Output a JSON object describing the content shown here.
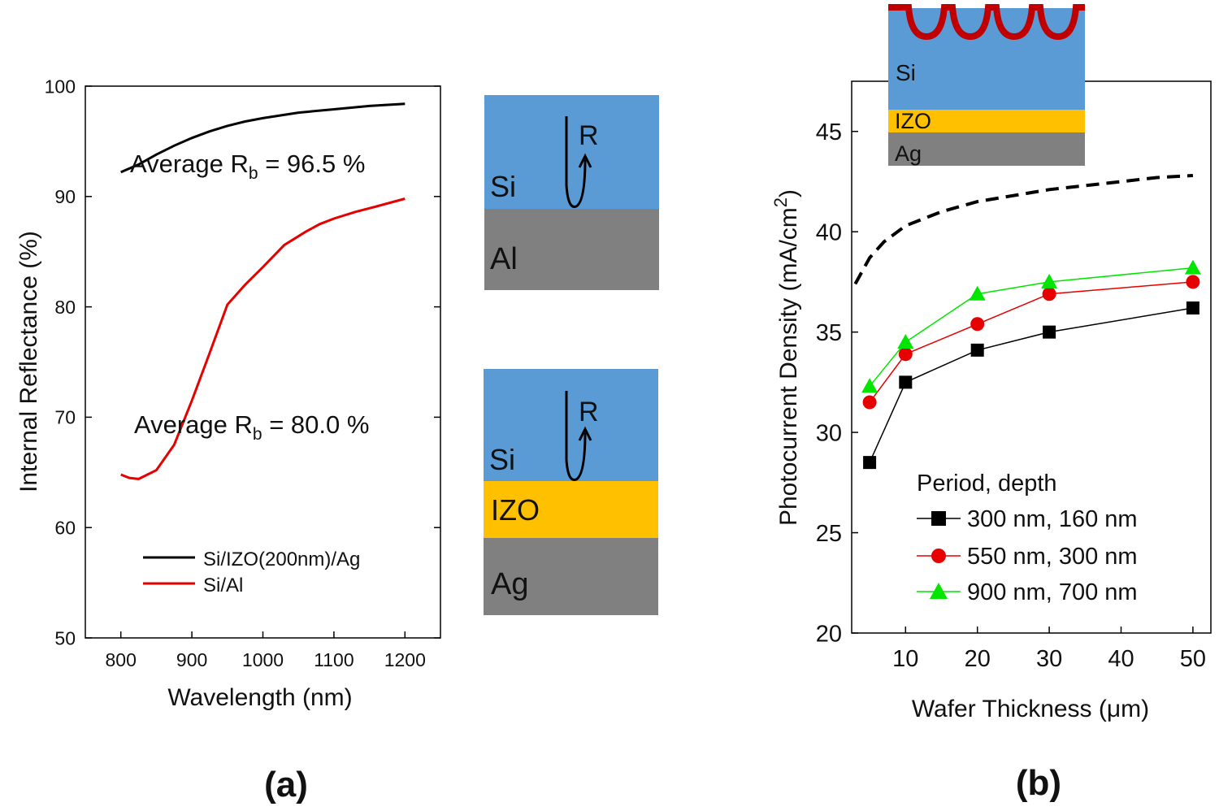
{
  "colors": {
    "black": "#000000",
    "red": "#e60000",
    "green": "#00e600",
    "si": "#5b9bd5",
    "izo": "#ffc000",
    "metal": "#808080",
    "texture": "#c00000"
  },
  "chart_data": [
    {
      "id": "a",
      "type": "line",
      "panel_label": "(a)",
      "xlabel": "Wavelength (nm)",
      "ylabel": "Internal Reflectance (%)",
      "xlim": [
        750,
        1250
      ],
      "ylim": [
        50,
        100
      ],
      "xticks": [
        800,
        900,
        1000,
        1100,
        1200
      ],
      "yticks": [
        50,
        60,
        70,
        80,
        90,
        100
      ],
      "legend_position": "bottom-left",
      "series": [
        {
          "name": "Si/IZO(200nm)/Ag",
          "color": "#000000",
          "x": [
            800,
            825,
            850,
            875,
            900,
            925,
            950,
            975,
            1000,
            1050,
            1100,
            1150,
            1200
          ],
          "y": [
            92.2,
            92.9,
            93.8,
            94.6,
            95.3,
            95.9,
            96.4,
            96.8,
            97.1,
            97.6,
            97.9,
            98.2,
            98.4
          ]
        },
        {
          "name": "Si/Al",
          "color": "#e60000",
          "x": [
            800,
            812,
            825,
            850,
            875,
            900,
            925,
            950,
            975,
            1000,
            1030,
            1060,
            1080,
            1100,
            1130,
            1160,
            1200
          ],
          "y": [
            64.8,
            64.5,
            64.4,
            65.2,
            67.5,
            71.5,
            75.8,
            80.2,
            82.0,
            83.6,
            85.6,
            86.8,
            87.5,
            88.0,
            88.6,
            89.1,
            89.8
          ]
        }
      ],
      "annotations": [
        {
          "prefix": "Average R",
          "sub": "b",
          "suffix": " = 96.5 %",
          "x": 812,
          "y": 93.2
        },
        {
          "prefix": "Average R",
          "sub": "b",
          "suffix": " = 80.0 %",
          "x": 815,
          "y": 69.2
        }
      ],
      "stacks": [
        {
          "layers": [
            {
              "label": "Si",
              "color": "#5b9bd5"
            },
            {
              "label": "Al",
              "color": "#808080"
            }
          ],
          "arrow_label": "R"
        },
        {
          "layers": [
            {
              "label": "Si",
              "color": "#5b9bd5"
            },
            {
              "label": "IZO",
              "color": "#ffc000"
            },
            {
              "label": "Ag",
              "color": "#808080"
            }
          ],
          "arrow_label": "R"
        }
      ]
    },
    {
      "id": "b",
      "type": "line",
      "panel_label": "(b)",
      "xlabel": "Wafer Thickness (μm)",
      "ylabel": "Photocurrent Density (mA/cm",
      "ylabel_sup": "2",
      "ylabel_close": ")",
      "xlim": [
        2.5,
        52.5
      ],
      "ylim": [
        20,
        47.5
      ],
      "xticks": [
        10,
        20,
        30,
        40,
        50
      ],
      "yticks": [
        20,
        25,
        30,
        35,
        40,
        45
      ],
      "legend_title": "Period, depth",
      "legend_position": "bottom-right",
      "series": [
        {
          "name": "300 nm, 160 nm",
          "color": "#000000",
          "marker": "square",
          "x": [
            5,
            10,
            20,
            30,
            50
          ],
          "y": [
            28.5,
            32.5,
            34.1,
            35.0,
            36.2
          ]
        },
        {
          "name": "550 nm, 300 nm",
          "color": "#e60000",
          "marker": "circle",
          "x": [
            5,
            10,
            20,
            30,
            50
          ],
          "y": [
            31.5,
            33.9,
            35.4,
            36.9,
            37.5
          ]
        },
        {
          "name": "900 nm, 700 nm",
          "color": "#00e600",
          "marker": "triangle",
          "x": [
            5,
            10,
            20,
            30,
            50
          ],
          "y": [
            32.3,
            34.5,
            36.9,
            37.5,
            38.2
          ]
        }
      ],
      "limit_curve": {
        "style": "dashed",
        "color": "#000000",
        "x": [
          3,
          5,
          7,
          10,
          15,
          20,
          25,
          30,
          35,
          40,
          45,
          50
        ],
        "y": [
          37.4,
          38.7,
          39.5,
          40.3,
          41.0,
          41.5,
          41.8,
          42.1,
          42.3,
          42.5,
          42.7,
          42.8
        ]
      },
      "inset": {
        "layers": [
          "Si",
          "IZO",
          "Ag"
        ]
      }
    }
  ]
}
